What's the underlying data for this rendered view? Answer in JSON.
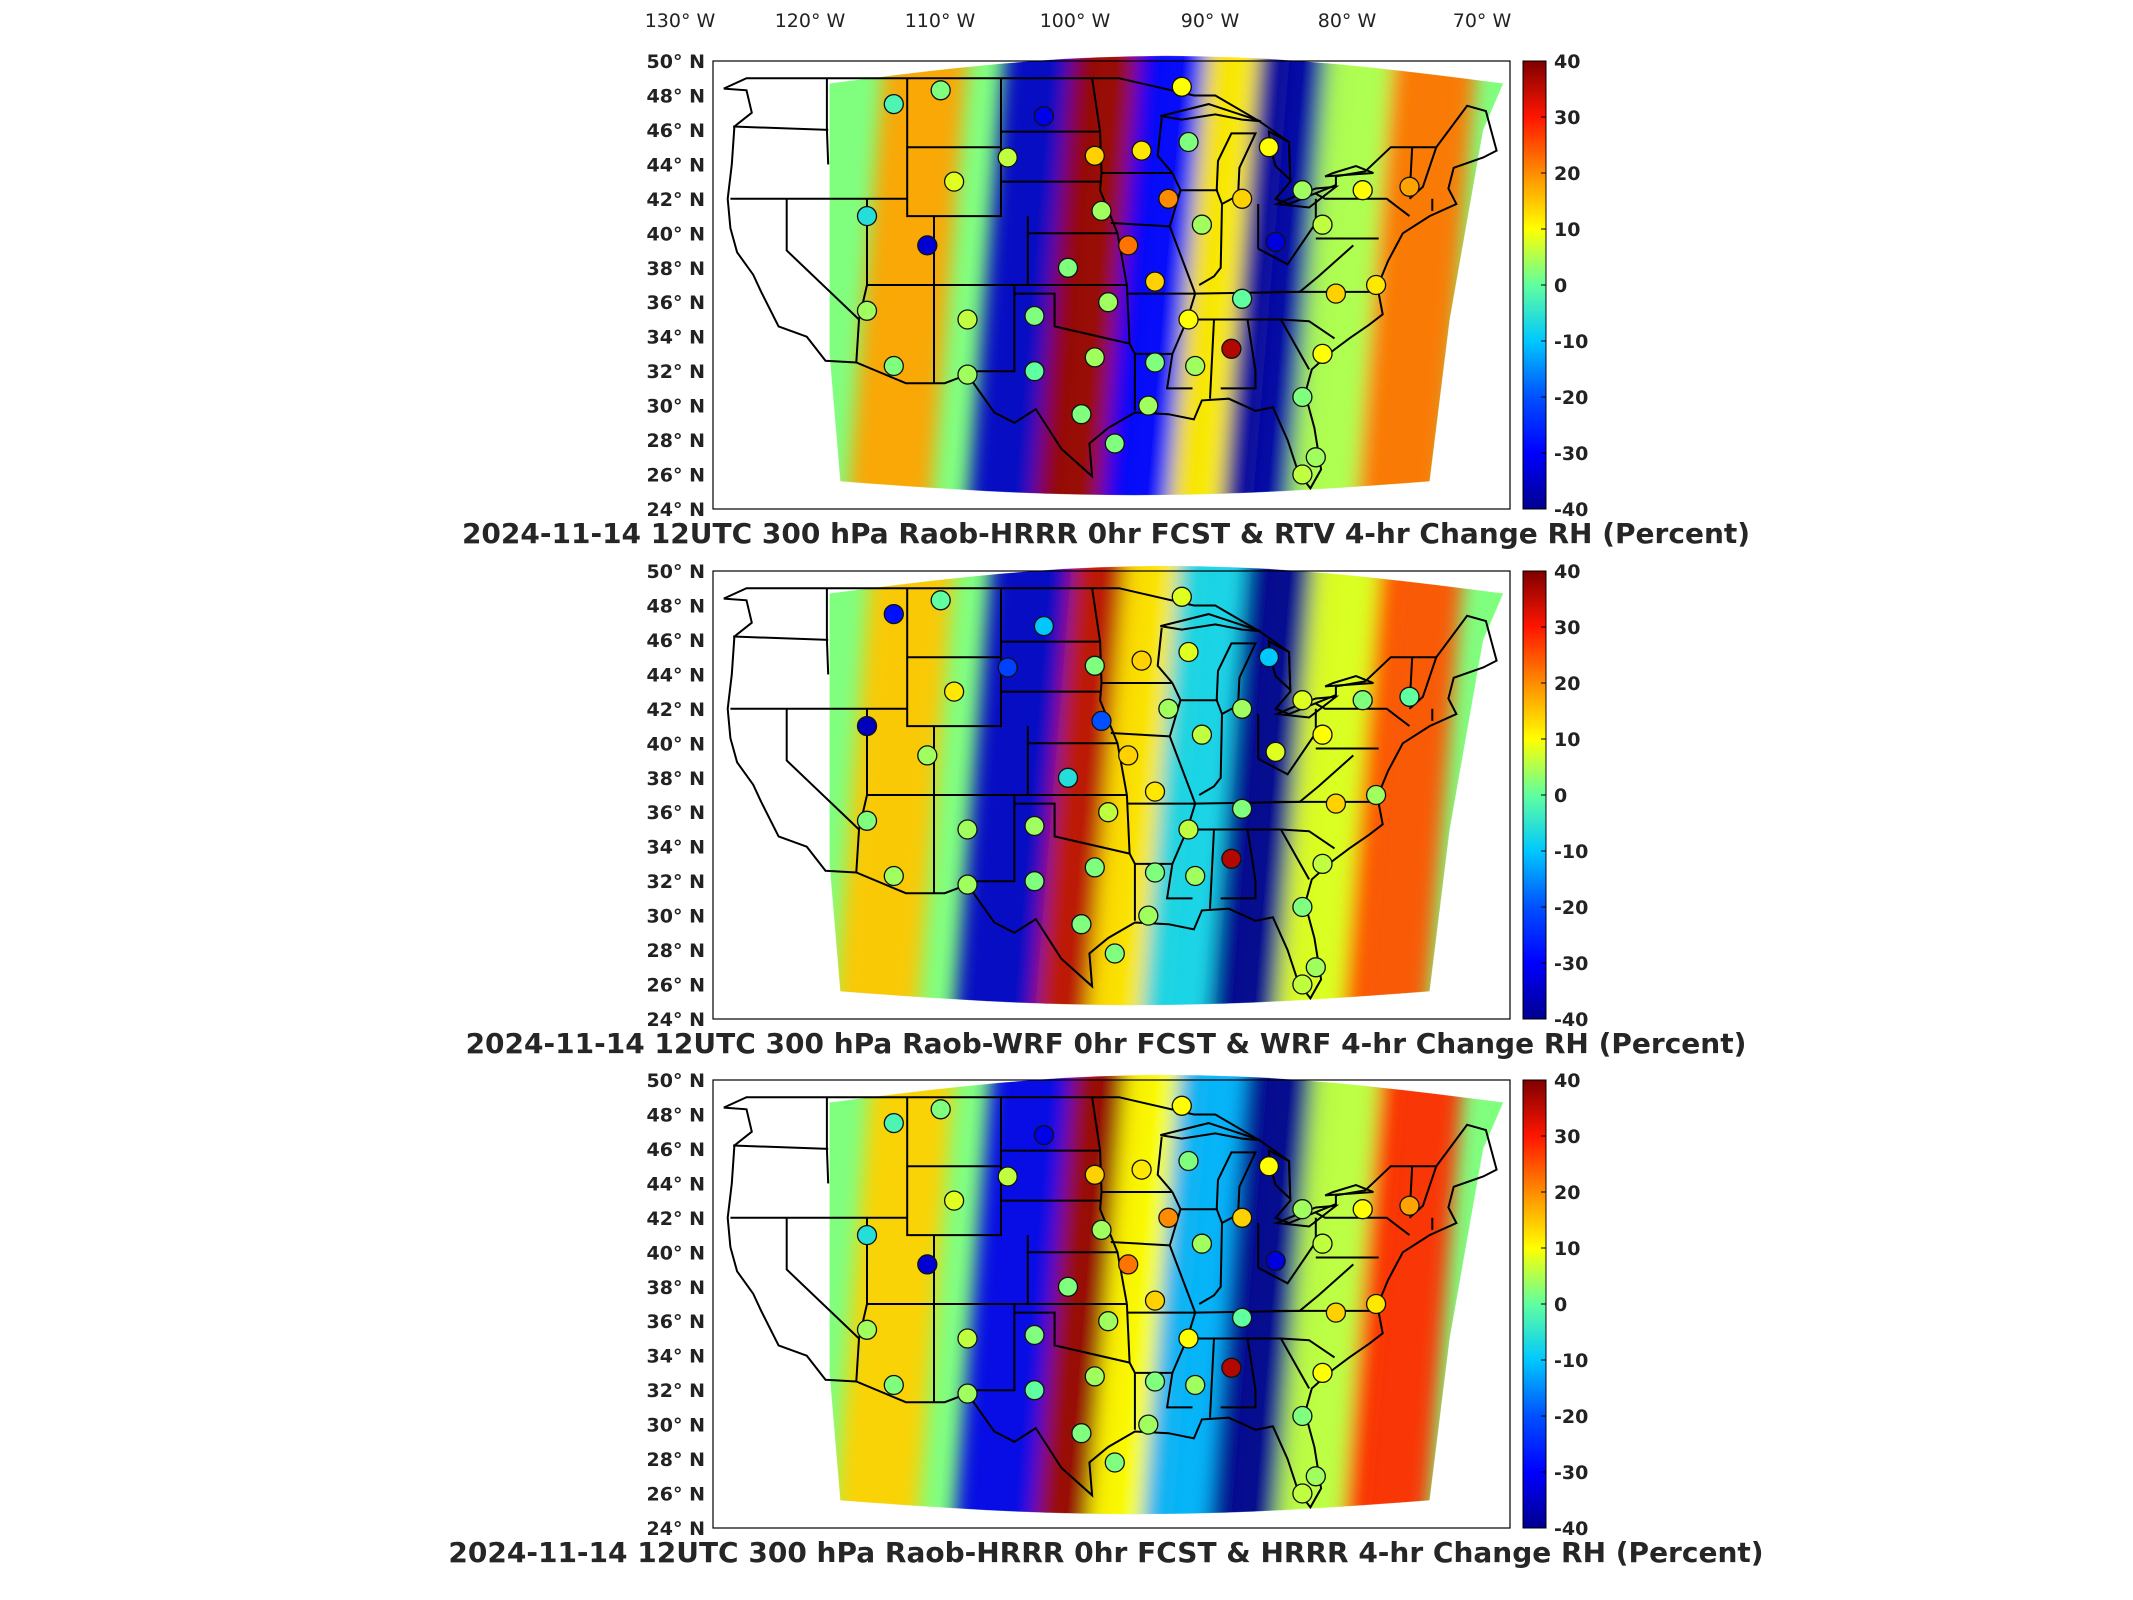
{
  "lon_labels": [
    "130° W",
    "120° W",
    "110° W",
    "100° W",
    "90° W",
    "80° W",
    "70° W"
  ],
  "lat_labels": [
    "50° N",
    "48° N",
    "46° N",
    "44° N",
    "42° N",
    "40° N",
    "38° N",
    "36° N",
    "34° N",
    "32° N",
    "30° N",
    "28° N",
    "26° N",
    "24° N"
  ],
  "colorbar": {
    "ticks": [
      "40",
      "30",
      "20",
      "10",
      "0",
      "-10",
      "-20",
      "-30",
      "-40"
    ],
    "min": -40,
    "max": 40,
    "colors": [
      "#00008f",
      "#0000ff",
      "#007fff",
      "#00ffff",
      "#7fff7f",
      "#ffff00",
      "#ff7f00",
      "#ff0000",
      "#7f0000"
    ]
  },
  "panels": [
    {
      "title": "2024-11-14 12UTC 300 hPa Raob-HRRR 0hr FCST & RTV 4-hr Change RH (Percent)",
      "bands": [
        {
          "lon": -111,
          "value": 18
        },
        {
          "lon": -102,
          "value": -35
        },
        {
          "lon": -97,
          "value": 38
        },
        {
          "lon": -92,
          "value": -30
        },
        {
          "lon": -87,
          "value": 12
        },
        {
          "lon": -83,
          "value": -38
        },
        {
          "lon": -78,
          "value": 5
        },
        {
          "lon": -73,
          "value": 22
        }
      ],
      "stations": [
        {
          "lon": -112.0,
          "lat": 47.5,
          "value": -2
        },
        {
          "lon": -108.5,
          "lat": 48.3,
          "value": 2
        },
        {
          "lon": -100.8,
          "lat": 46.8,
          "value": -32
        },
        {
          "lon": -103.5,
          "lat": 44.4,
          "value": 6
        },
        {
          "lon": -107.5,
          "lat": 43.0,
          "value": 8
        },
        {
          "lon": -114.0,
          "lat": 41.0,
          "value": -6
        },
        {
          "lon": -109.5,
          "lat": 39.3,
          "value": -34
        },
        {
          "lon": -99.0,
          "lat": 38.0,
          "value": 2
        },
        {
          "lon": -96.5,
          "lat": 41.3,
          "value": 4
        },
        {
          "lon": -93.5,
          "lat": 44.8,
          "value": 12
        },
        {
          "lon": -97.0,
          "lat": 44.5,
          "value": 14
        },
        {
          "lon": -90.0,
          "lat": 45.3,
          "value": 2
        },
        {
          "lon": -94.5,
          "lat": 39.3,
          "value": 22
        },
        {
          "lon": -91.5,
          "lat": 42.0,
          "value": 20
        },
        {
          "lon": -89.0,
          "lat": 40.5,
          "value": 4
        },
        {
          "lon": -86.0,
          "lat": 42.0,
          "value": 14
        },
        {
          "lon": -84.0,
          "lat": 45.0,
          "value": 10
        },
        {
          "lon": -81.5,
          "lat": 42.5,
          "value": 4
        },
        {
          "lon": -83.5,
          "lat": 39.5,
          "value": -33
        },
        {
          "lon": -80.0,
          "lat": 40.5,
          "value": 6
        },
        {
          "lon": -77.0,
          "lat": 42.5,
          "value": 10
        },
        {
          "lon": -73.5,
          "lat": 42.7,
          "value": 18
        },
        {
          "lon": -79.0,
          "lat": 36.5,
          "value": 14
        },
        {
          "lon": -76.0,
          "lat": 37.0,
          "value": 12
        },
        {
          "lon": -86.8,
          "lat": 33.3,
          "value": 36
        },
        {
          "lon": -86.0,
          "lat": 36.2,
          "value": 0
        },
        {
          "lon": -80.0,
          "lat": 33.0,
          "value": 10
        },
        {
          "lon": -90.0,
          "lat": 35.0,
          "value": 10
        },
        {
          "lon": -92.5,
          "lat": 37.2,
          "value": 14
        },
        {
          "lon": -96.0,
          "lat": 36.0,
          "value": 4
        },
        {
          "lon": -101.5,
          "lat": 35.2,
          "value": 2
        },
        {
          "lon": -106.5,
          "lat": 35.0,
          "value": 6
        },
        {
          "lon": -114.0,
          "lat": 35.5,
          "value": 4
        },
        {
          "lon": -112.0,
          "lat": 32.3,
          "value": 2
        },
        {
          "lon": -106.5,
          "lat": 31.8,
          "value": 4
        },
        {
          "lon": -101.5,
          "lat": 32.0,
          "value": 0
        },
        {
          "lon": -97.0,
          "lat": 32.8,
          "value": 4
        },
        {
          "lon": -92.5,
          "lat": 32.5,
          "value": 2
        },
        {
          "lon": -89.5,
          "lat": 32.3,
          "value": 4
        },
        {
          "lon": -98.0,
          "lat": 29.5,
          "value": 2
        },
        {
          "lon": -95.5,
          "lat": 27.8,
          "value": 2
        },
        {
          "lon": -93.0,
          "lat": 30.0,
          "value": 4
        },
        {
          "lon": -81.5,
          "lat": 30.5,
          "value": 2
        },
        {
          "lon": -80.5,
          "lat": 27.0,
          "value": 4
        },
        {
          "lon": -81.5,
          "lat": 26.0,
          "value": 6
        },
        {
          "lon": -90.5,
          "lat": 48.5,
          "value": 10
        }
      ]
    },
    {
      "title": "2024-11-14 12UTC 300 hPa Raob-WRF 0hr FCST & WRF 4-hr Change RH (Percent)",
      "bands": [
        {
          "lon": -112,
          "value": 15
        },
        {
          "lon": -103,
          "value": -35
        },
        {
          "lon": -97,
          "value": 35
        },
        {
          "lon": -93,
          "value": 12
        },
        {
          "lon": -89,
          "value": -8
        },
        {
          "lon": -84,
          "value": -40
        },
        {
          "lon": -79,
          "value": 8
        },
        {
          "lon": -74,
          "value": 25
        }
      ],
      "stations": [
        {
          "lon": -112.0,
          "lat": 47.5,
          "value": -28
        },
        {
          "lon": -108.5,
          "lat": 48.3,
          "value": 0
        },
        {
          "lon": -100.8,
          "lat": 46.8,
          "value": -10
        },
        {
          "lon": -103.5,
          "lat": 44.4,
          "value": -22
        },
        {
          "lon": -107.5,
          "lat": 43.0,
          "value": 12
        },
        {
          "lon": -114.0,
          "lat": 41.0,
          "value": -36
        },
        {
          "lon": -109.5,
          "lat": 39.3,
          "value": 4
        },
        {
          "lon": -99.0,
          "lat": 38.0,
          "value": -6
        },
        {
          "lon": -96.5,
          "lat": 41.3,
          "value": -20
        },
        {
          "lon": -93.5,
          "lat": 44.8,
          "value": 14
        },
        {
          "lon": -97.0,
          "lat": 44.5,
          "value": 2
        },
        {
          "lon": -90.0,
          "lat": 45.3,
          "value": 8
        },
        {
          "lon": -94.5,
          "lat": 39.3,
          "value": 14
        },
        {
          "lon": -91.5,
          "lat": 42.0,
          "value": 4
        },
        {
          "lon": -89.0,
          "lat": 40.5,
          "value": 6
        },
        {
          "lon": -86.0,
          "lat": 42.0,
          "value": 4
        },
        {
          "lon": -84.0,
          "lat": 45.0,
          "value": -10
        },
        {
          "lon": -81.5,
          "lat": 42.5,
          "value": 8
        },
        {
          "lon": -83.5,
          "lat": 39.5,
          "value": 8
        },
        {
          "lon": -80.0,
          "lat": 40.5,
          "value": 10
        },
        {
          "lon": -77.0,
          "lat": 42.5,
          "value": 2
        },
        {
          "lon": -73.5,
          "lat": 42.7,
          "value": 0
        },
        {
          "lon": -79.0,
          "lat": 36.5,
          "value": 14
        },
        {
          "lon": -76.0,
          "lat": 37.0,
          "value": 4
        },
        {
          "lon": -86.8,
          "lat": 33.3,
          "value": 36
        },
        {
          "lon": -86.0,
          "lat": 36.2,
          "value": 2
        },
        {
          "lon": -80.0,
          "lat": 33.0,
          "value": 6
        },
        {
          "lon": -90.0,
          "lat": 35.0,
          "value": 6
        },
        {
          "lon": -92.5,
          "lat": 37.2,
          "value": 12
        },
        {
          "lon": -96.0,
          "lat": 36.0,
          "value": 6
        },
        {
          "lon": -101.5,
          "lat": 35.2,
          "value": 4
        },
        {
          "lon": -106.5,
          "lat": 35.0,
          "value": 4
        },
        {
          "lon": -114.0,
          "lat": 35.5,
          "value": 2
        },
        {
          "lon": -112.0,
          "lat": 32.3,
          "value": 4
        },
        {
          "lon": -106.5,
          "lat": 31.8,
          "value": 4
        },
        {
          "lon": -101.5,
          "lat": 32.0,
          "value": 2
        },
        {
          "lon": -97.0,
          "lat": 32.8,
          "value": 2
        },
        {
          "lon": -92.5,
          "lat": 32.5,
          "value": 2
        },
        {
          "lon": -89.5,
          "lat": 32.3,
          "value": 4
        },
        {
          "lon": -98.0,
          "lat": 29.5,
          "value": 2
        },
        {
          "lon": -95.5,
          "lat": 27.8,
          "value": 2
        },
        {
          "lon": -93.0,
          "lat": 30.0,
          "value": 4
        },
        {
          "lon": -81.5,
          "lat": 30.5,
          "value": 2
        },
        {
          "lon": -80.5,
          "lat": 27.0,
          "value": 4
        },
        {
          "lon": -81.5,
          "lat": 26.0,
          "value": 6
        },
        {
          "lon": -90.5,
          "lat": 48.5,
          "value": 8
        }
      ]
    },
    {
      "title": "2024-11-14 12UTC 300 hPa Raob-HRRR 0hr FCST & HRRR 4-hr Change RH (Percent)",
      "bands": [
        {
          "lon": -112,
          "value": 14
        },
        {
          "lon": -103,
          "value": -32
        },
        {
          "lon": -97,
          "value": 38
        },
        {
          "lon": -93,
          "value": 10
        },
        {
          "lon": -89,
          "value": -12
        },
        {
          "lon": -84,
          "value": -40
        },
        {
          "lon": -79,
          "value": 6
        },
        {
          "lon": -74,
          "value": 28
        }
      ],
      "stations": [
        {
          "lon": -112.0,
          "lat": 47.5,
          "value": -2
        },
        {
          "lon": -108.5,
          "lat": 48.3,
          "value": 2
        },
        {
          "lon": -100.8,
          "lat": 46.8,
          "value": -32
        },
        {
          "lon": -103.5,
          "lat": 44.4,
          "value": 6
        },
        {
          "lon": -107.5,
          "lat": 43.0,
          "value": 8
        },
        {
          "lon": -114.0,
          "lat": 41.0,
          "value": -6
        },
        {
          "lon": -109.5,
          "lat": 39.3,
          "value": -34
        },
        {
          "lon": -99.0,
          "lat": 38.0,
          "value": 2
        },
        {
          "lon": -96.5,
          "lat": 41.3,
          "value": 4
        },
        {
          "lon": -93.5,
          "lat": 44.8,
          "value": 12
        },
        {
          "lon": -97.0,
          "lat": 44.5,
          "value": 14
        },
        {
          "lon": -90.0,
          "lat": 45.3,
          "value": 2
        },
        {
          "lon": -94.5,
          "lat": 39.3,
          "value": 22
        },
        {
          "lon": -91.5,
          "lat": 42.0,
          "value": 20
        },
        {
          "lon": -89.0,
          "lat": 40.5,
          "value": 4
        },
        {
          "lon": -86.0,
          "lat": 42.0,
          "value": 14
        },
        {
          "lon": -84.0,
          "lat": 45.0,
          "value": 10
        },
        {
          "lon": -81.5,
          "lat": 42.5,
          "value": 4
        },
        {
          "lon": -83.5,
          "lat": 39.5,
          "value": -33
        },
        {
          "lon": -80.0,
          "lat": 40.5,
          "value": 6
        },
        {
          "lon": -77.0,
          "lat": 42.5,
          "value": 10
        },
        {
          "lon": -73.5,
          "lat": 42.7,
          "value": 18
        },
        {
          "lon": -79.0,
          "lat": 36.5,
          "value": 14
        },
        {
          "lon": -76.0,
          "lat": 37.0,
          "value": 12
        },
        {
          "lon": -86.8,
          "lat": 33.3,
          "value": 36
        },
        {
          "lon": -86.0,
          "lat": 36.2,
          "value": 0
        },
        {
          "lon": -80.0,
          "lat": 33.0,
          "value": 10
        },
        {
          "lon": -90.0,
          "lat": 35.0,
          "value": 10
        },
        {
          "lon": -92.5,
          "lat": 37.2,
          "value": 14
        },
        {
          "lon": -96.0,
          "lat": 36.0,
          "value": 4
        },
        {
          "lon": -101.5,
          "lat": 35.2,
          "value": 2
        },
        {
          "lon": -106.5,
          "lat": 35.0,
          "value": 6
        },
        {
          "lon": -114.0,
          "lat": 35.5,
          "value": 4
        },
        {
          "lon": -112.0,
          "lat": 32.3,
          "value": 2
        },
        {
          "lon": -106.5,
          "lat": 31.8,
          "value": 4
        },
        {
          "lon": -101.5,
          "lat": 32.0,
          "value": 0
        },
        {
          "lon": -97.0,
          "lat": 32.8,
          "value": 4
        },
        {
          "lon": -92.5,
          "lat": 32.5,
          "value": 2
        },
        {
          "lon": -89.5,
          "lat": 32.3,
          "value": 4
        },
        {
          "lon": -98.0,
          "lat": 29.5,
          "value": 2
        },
        {
          "lon": -95.5,
          "lat": 27.8,
          "value": 2
        },
        {
          "lon": -93.0,
          "lat": 30.0,
          "value": 4
        },
        {
          "lon": -81.5,
          "lat": 30.5,
          "value": 2
        },
        {
          "lon": -80.5,
          "lat": 27.0,
          "value": 4
        },
        {
          "lon": -81.5,
          "lat": 26.0,
          "value": 6
        },
        {
          "lon": -90.5,
          "lat": 48.5,
          "value": 10
        }
      ]
    }
  ]
}
